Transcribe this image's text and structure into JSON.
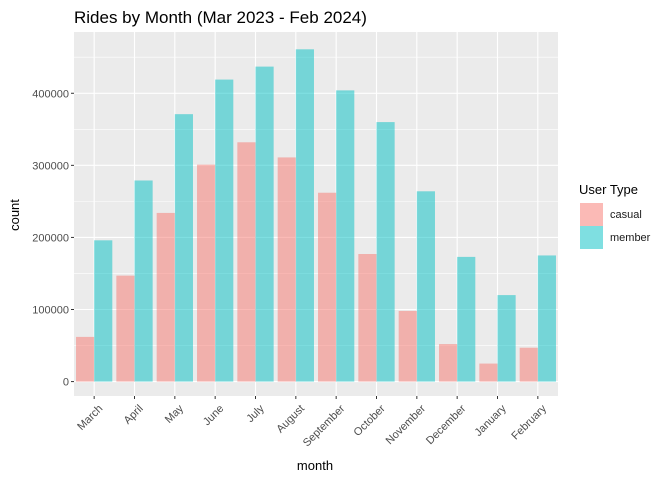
{
  "chart_data": {
    "type": "bar",
    "title": "Rides by Month (Mar 2023 - Feb 2024)",
    "xlabel": "month",
    "ylabel": "count",
    "categories": [
      "March",
      "April",
      "May",
      "June",
      "July",
      "August",
      "September",
      "October",
      "November",
      "December",
      "January",
      "February"
    ],
    "series": [
      {
        "name": "casual",
        "color": "#F8766D",
        "values": [
          62000,
          147000,
          234000,
          301000,
          332000,
          311000,
          262000,
          177000,
          98000,
          52000,
          25000,
          47000
        ]
      },
      {
        "name": "member",
        "color": "#00BFC4",
        "values": [
          196000,
          279000,
          371000,
          419000,
          437000,
          461000,
          404000,
          360000,
          264000,
          173000,
          120000,
          175000
        ]
      }
    ],
    "ylim": [
      -20000,
      485000
    ],
    "yticks": [
      0,
      100000,
      200000,
      300000,
      400000
    ],
    "ytick_labels": [
      "0",
      "100000",
      "200000",
      "300000",
      "400000"
    ],
    "bar_alpha": 0.5,
    "legend": {
      "title": "User Type",
      "position": "right",
      "entries": [
        "casual",
        "member"
      ]
    },
    "grid": true,
    "panel_background": "#EBEBEB"
  }
}
